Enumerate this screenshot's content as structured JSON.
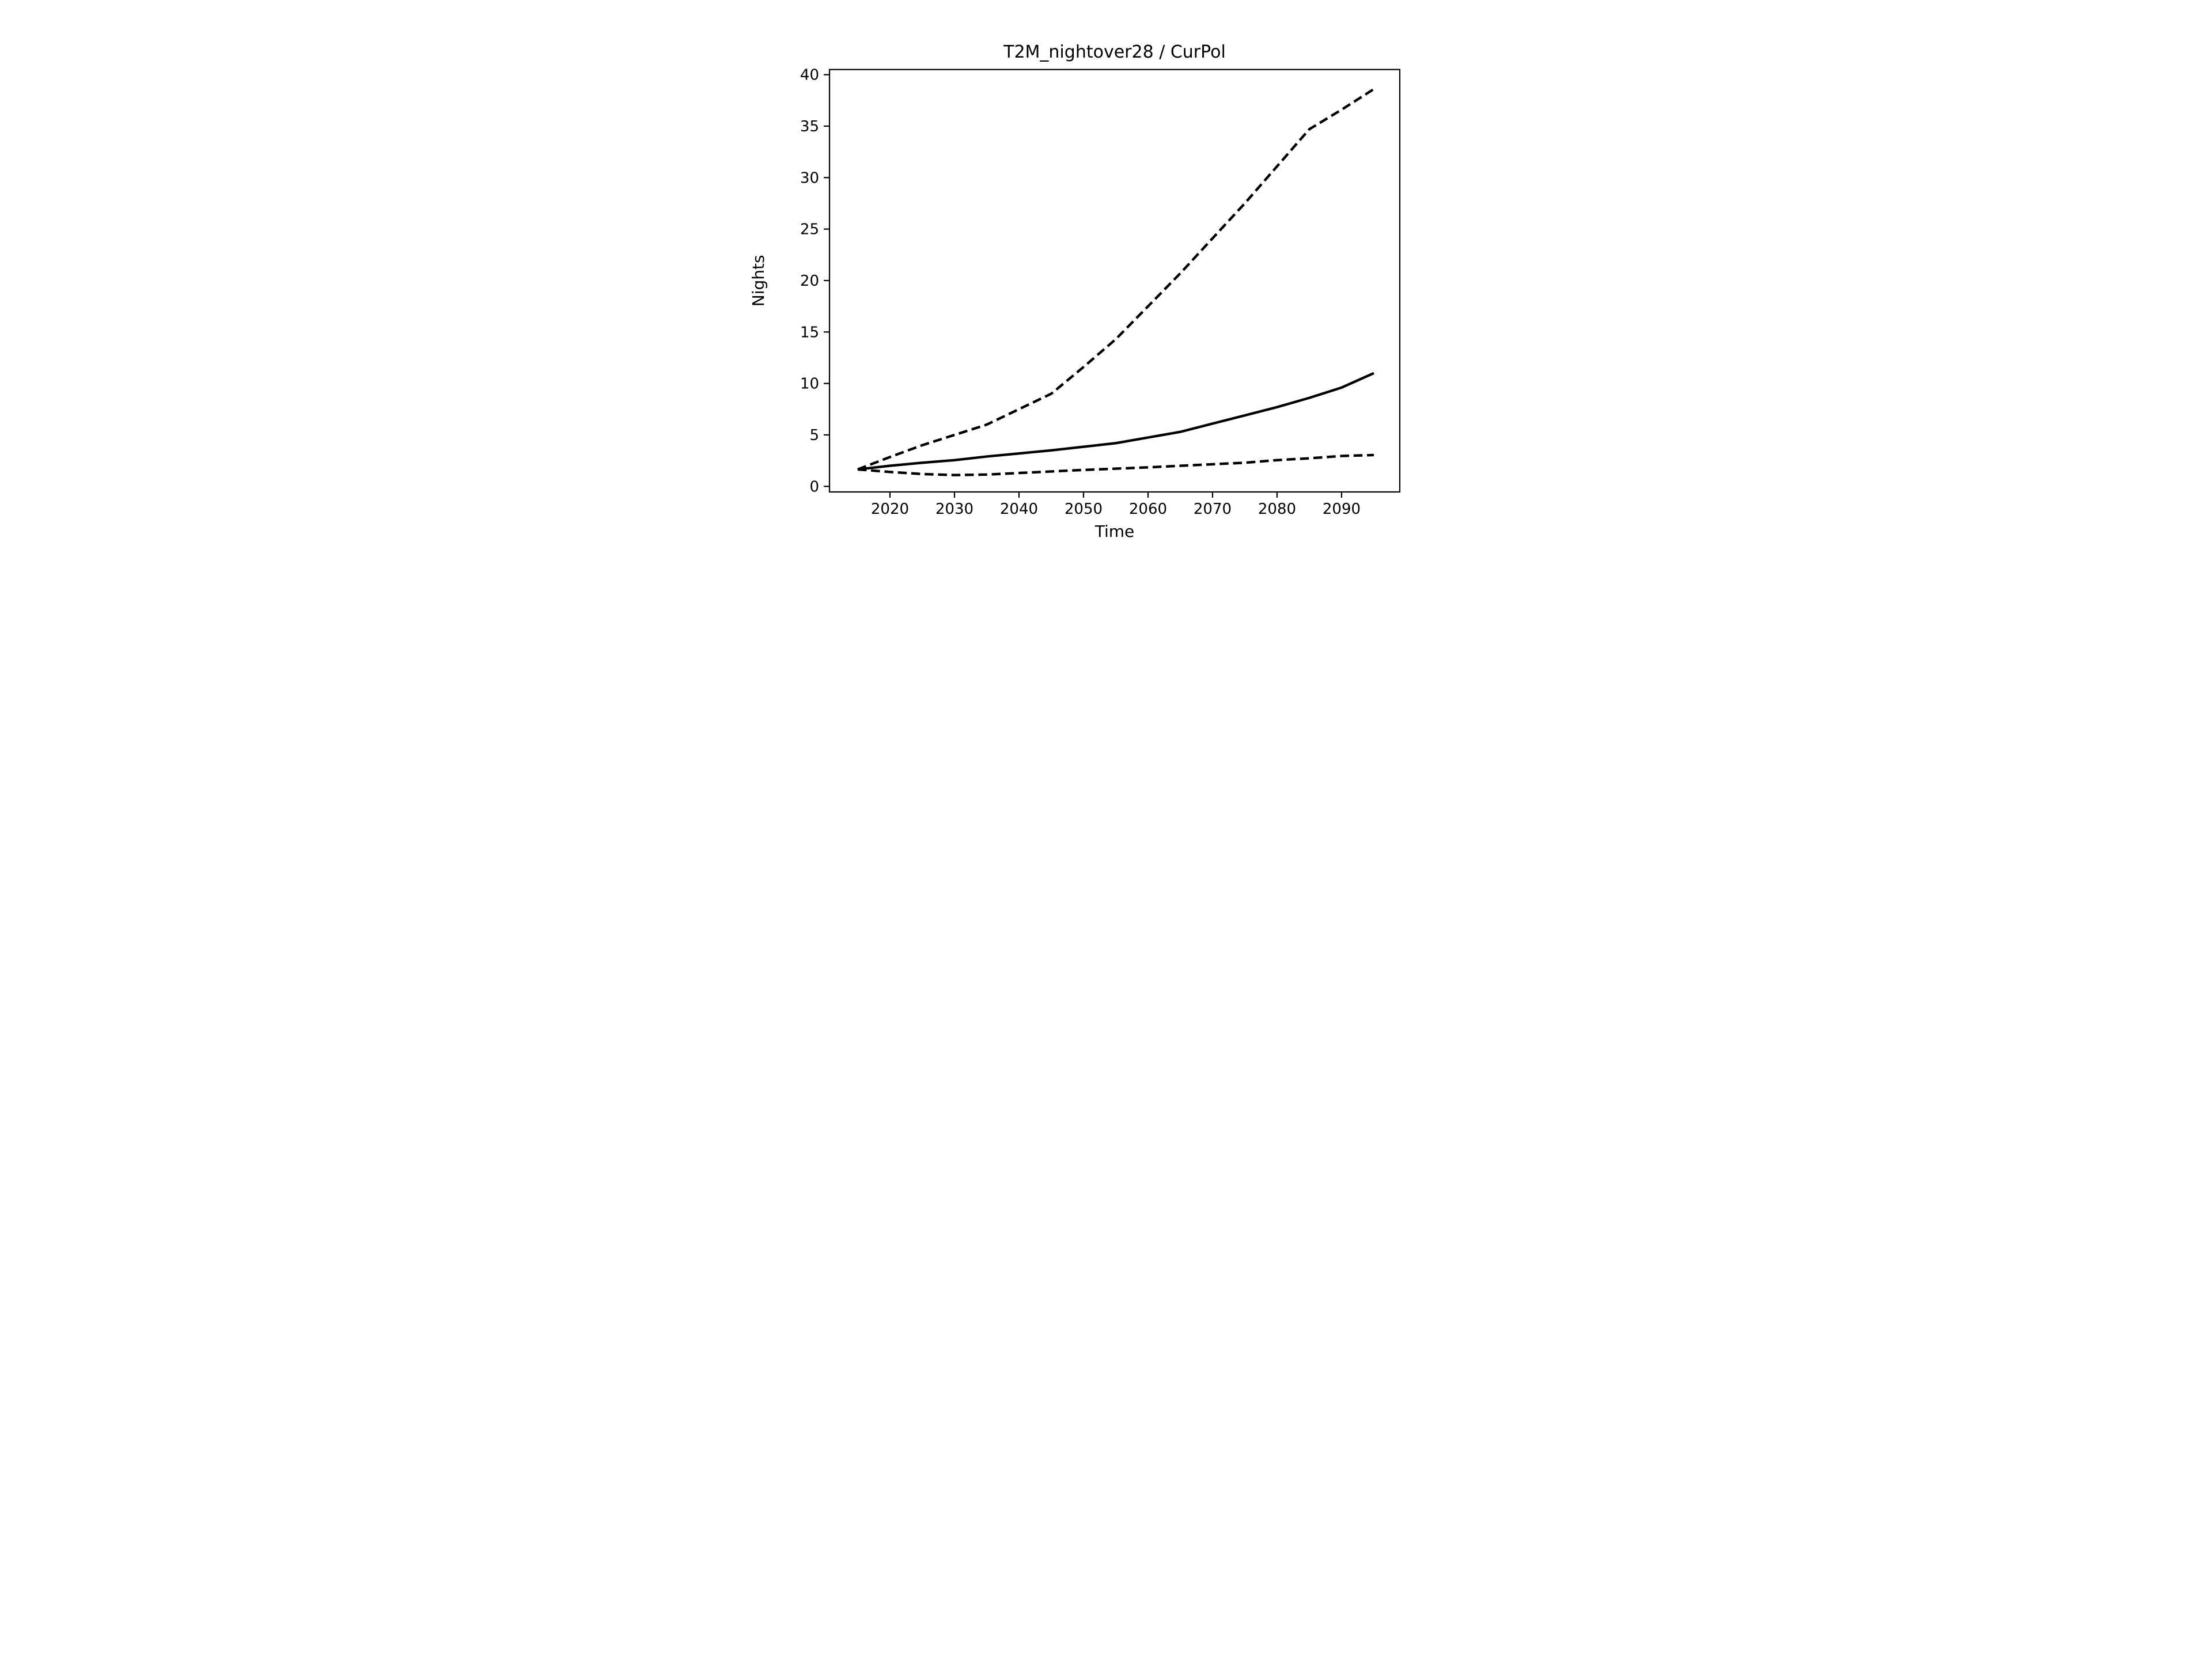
{
  "figure": {
    "background": "#ffffff",
    "foreground": "#000000"
  },
  "chart_data": {
    "type": "line",
    "title": "T2M_nightover28 / CurPol",
    "xlabel": "Time",
    "ylabel": "Nights",
    "grid": false,
    "legend": null,
    "line_color": "#000000",
    "xlim": [
      2010.63,
      2099.02
    ],
    "ylim": [
      -0.54,
      40.5
    ],
    "xticks": [
      2020,
      2030,
      2040,
      2050,
      2060,
      2070,
      2080,
      2090
    ],
    "yticks": [
      0,
      5,
      10,
      15,
      20,
      25,
      30,
      35,
      40
    ],
    "x": [
      2015,
      2020,
      2025,
      2030,
      2035,
      2040,
      2045,
      2050,
      2055,
      2060,
      2065,
      2070,
      2075,
      2080,
      2085,
      2090,
      2095
    ],
    "series": [
      {
        "name": "upper-dashed",
        "style": "dashed",
        "values": [
          1.65,
          2.85,
          4.0,
          5.0,
          6.0,
          7.5,
          9.0,
          11.6,
          14.3,
          17.5,
          20.7,
          24.1,
          27.5,
          31.1,
          34.7,
          36.6,
          38.6
        ]
      },
      {
        "name": "median-solid",
        "style": "solid",
        "values": [
          1.65,
          2.0,
          2.3,
          2.55,
          2.9,
          3.2,
          3.5,
          3.85,
          4.2,
          4.75,
          5.3,
          6.1,
          6.9,
          7.7,
          8.6,
          9.6,
          11.0
        ]
      },
      {
        "name": "lower-dashed",
        "style": "dashed",
        "values": [
          1.65,
          1.4,
          1.2,
          1.1,
          1.15,
          1.3,
          1.45,
          1.6,
          1.72,
          1.85,
          2.0,
          2.15,
          2.3,
          2.55,
          2.73,
          2.95,
          3.05
        ]
      }
    ]
  }
}
